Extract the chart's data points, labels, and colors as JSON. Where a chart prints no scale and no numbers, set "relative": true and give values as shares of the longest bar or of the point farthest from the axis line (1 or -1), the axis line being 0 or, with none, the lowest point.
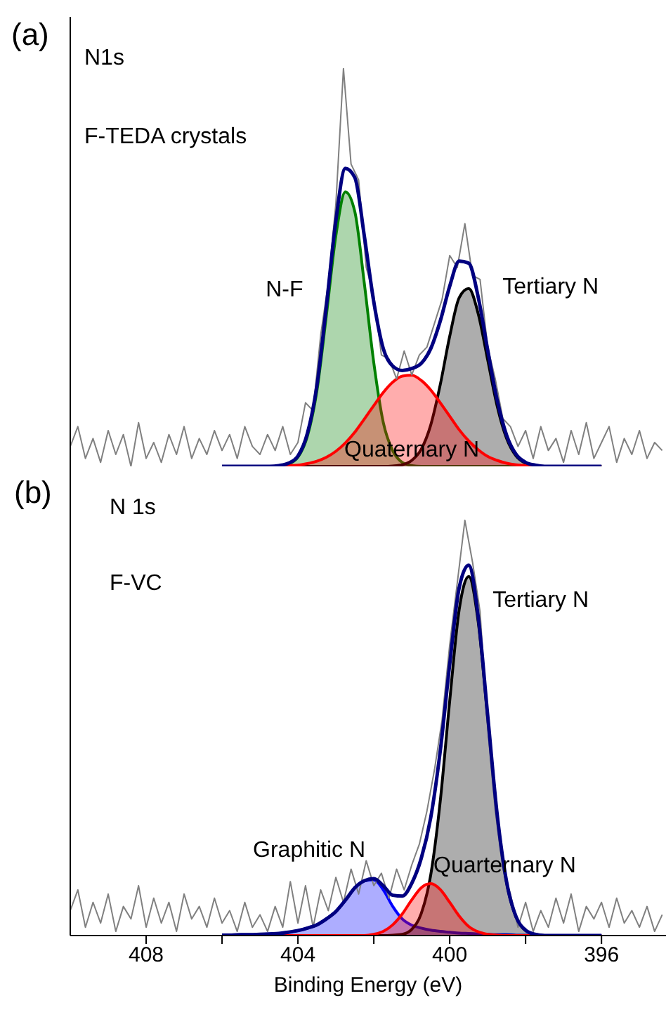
{
  "chart_data": [
    {
      "type": "line",
      "title": "(a)",
      "annotations": [
        "N1s",
        "F-TEDA crystals"
      ],
      "relative": true,
      "xlim": [
        410,
        394.3
      ],
      "tick_labels": false,
      "x": [
        406,
        405.75,
        405.5,
        405.25,
        405,
        404.75,
        404.5,
        404.25,
        404,
        403.75,
        403.5,
        403.25,
        403,
        402.75,
        402.5,
        402.25,
        402,
        401.75,
        401.5,
        401.25,
        401,
        400.75,
        400.5,
        400.25,
        400,
        399.75,
        399.5,
        399.25,
        399,
        398.75,
        398.5,
        398.25,
        398,
        397.75,
        397.5,
        397.25,
        397,
        396.75,
        396.5,
        396.25,
        396
      ],
      "series": [
        {
          "type": "area",
          "name": "N-F",
          "color": "#008000",
          "values": [
            0,
            0,
            0,
            0,
            0,
            0,
            0.001,
            0.006,
            0.023,
            0.076,
            0.19,
            0.38,
            0.58,
            0.69,
            0.64,
            0.46,
            0.26,
            0.11,
            0.039,
            0.01,
            0.002,
            0,
            0,
            0,
            0,
            0,
            0,
            0,
            0,
            0,
            0,
            0,
            0,
            0,
            0,
            0,
            0,
            0,
            0,
            0,
            0
          ]
        },
        {
          "type": "area",
          "name": "Tertiary N",
          "color": "#000000",
          "values": [
            0,
            0,
            0,
            0,
            0,
            0,
            0,
            0,
            0,
            0,
            0,
            0,
            0,
            0,
            0,
            0,
            0,
            0,
            0.001,
            0.004,
            0.015,
            0.043,
            0.104,
            0.205,
            0.327,
            0.424,
            0.447,
            0.384,
            0.268,
            0.152,
            0.07,
            0.026,
            0.008,
            0.002,
            0,
            0,
            0,
            0,
            0,
            0,
            0
          ]
        },
        {
          "type": "area",
          "name": "Quaternary N",
          "color": "#ff0000",
          "values": [
            0,
            0,
            0,
            0,
            0,
            0,
            0.001,
            0.002,
            0.003,
            0.007,
            0.013,
            0.023,
            0.038,
            0.059,
            0.086,
            0.119,
            0.153,
            0.186,
            0.212,
            0.227,
            0.229,
            0.216,
            0.192,
            0.16,
            0.126,
            0.092,
            0.064,
            0.042,
            0.025,
            0.015,
            0.008,
            0.004,
            0.002,
            0.001,
            0,
            0,
            0,
            0,
            0,
            0,
            0
          ]
        },
        {
          "color": "#808080",
          "x": [
            410,
            409.8,
            409.6,
            409.4,
            409.2,
            409,
            408.8,
            408.6,
            408.4,
            408.2,
            408,
            407.8,
            407.6,
            407.4,
            407.2,
            407,
            406.8,
            406.6,
            406.4,
            406.2,
            406,
            405.8,
            405.6,
            405.4,
            405.2,
            405,
            404.8,
            404.6,
            404.4,
            404.2,
            404,
            403.8,
            403.6,
            403.4,
            403.2,
            403,
            402.8,
            402.6,
            402.4,
            402.2,
            402,
            401.8,
            401.6,
            401.4,
            401.2,
            401,
            400.8,
            400.6,
            400.4,
            400.2,
            400,
            399.8,
            399.6,
            399.4,
            399.2,
            399,
            398.8,
            398.6,
            398.4,
            398.2,
            398,
            397.8,
            397.6,
            397.4,
            397.2,
            397,
            396.8,
            396.6,
            396.4,
            396.2,
            396,
            395.8,
            395.6,
            395.4,
            395.2,
            395,
            394.8,
            394.6,
            394.4
          ],
          "values": [
            0.05,
            0.1,
            0.02,
            0.07,
            0.01,
            0.09,
            0.03,
            0.08,
            0,
            0.11,
            0.02,
            0.06,
            0.01,
            0.08,
            0.03,
            0.1,
            0.02,
            0.07,
            0.03,
            0.09,
            0.04,
            0.08,
            0.02,
            0.1,
            0.05,
            0.03,
            0.08,
            0.04,
            0.1,
            0.03,
            0.06,
            0.16,
            0.14,
            0.33,
            0.46,
            0.66,
            1,
            0.76,
            0.72,
            0.5,
            0.43,
            0.28,
            0.27,
            0.22,
            0.29,
            0.23,
            0.28,
            0.3,
            0.36,
            0.42,
            0.53,
            0.5,
            0.61,
            0.48,
            0.47,
            0.3,
            0.22,
            0.12,
            0.1,
            0.05,
            0.09,
            0.02,
            0.1,
            0.04,
            0.07,
            0.01,
            0.09,
            0.03,
            0.11,
            0.02,
            0.06,
            0.1,
            0.01,
            0.07,
            0.03,
            0.09,
            0.02,
            0.06,
            0.04
          ]
        },
        {
          "color": "#000080",
          "values": [
            0,
            0,
            0,
            0,
            0,
            0,
            0.002,
            0.008,
            0.026,
            0.083,
            0.203,
            0.403,
            0.618,
            0.749,
            0.726,
            0.579,
            0.413,
            0.296,
            0.252,
            0.241,
            0.246,
            0.259,
            0.296,
            0.365,
            0.453,
            0.516,
            0.511,
            0.426,
            0.293,
            0.167,
            0.078,
            0.03,
            0.01,
            0.003,
            0,
            0,
            0,
            0,
            0,
            0,
            0
          ]
        }
      ]
    },
    {
      "type": "line",
      "title": "(b)",
      "annotations": [
        "N 1s",
        "F-VC"
      ],
      "xlabel": "Binding Energy (eV)",
      "relative": true,
      "xlim": [
        410,
        394.3
      ],
      "xticks": [
        408,
        {
          "value": 406,
          "label": null
        },
        404,
        {
          "value": 402,
          "label": null
        },
        400,
        {
          "value": 398,
          "label": null
        },
        396
      ],
      "tick_labels": "x",
      "x": [
        406,
        405.75,
        405.5,
        405.25,
        405,
        404.75,
        404.5,
        404.25,
        404,
        403.75,
        403.5,
        403.25,
        403,
        402.75,
        402.5,
        402.25,
        402,
        401.75,
        401.5,
        401.25,
        401,
        400.75,
        400.5,
        400.25,
        400,
        399.75,
        399.5,
        399.25,
        399,
        398.75,
        398.5,
        398.25,
        398,
        397.75,
        397.5,
        397.25,
        397,
        396.75,
        396.5,
        396.25,
        396
      ],
      "series": [
        {
          "type": "area",
          "name": "Graphitic N",
          "color": "#0000ff",
          "values": [
            0.001,
            0.001,
            0.002,
            0.002,
            0.003,
            0.004,
            0.005,
            0.008,
            0.012,
            0.018,
            0.026,
            0.04,
            0.058,
            0.085,
            0.115,
            0.132,
            0.134,
            0.11,
            0.07,
            0.04,
            0.025,
            0.018,
            0.013,
            0.01,
            0.008,
            0.006,
            0.005,
            0.004,
            0.003,
            0.002,
            0.002,
            0.001,
            0.001,
            0,
            0,
            0,
            0,
            0,
            0,
            0,
            0
          ]
        },
        {
          "type": "area",
          "name": "Tertiary N",
          "color": "#000000",
          "values": [
            0,
            0,
            0,
            0,
            0,
            0,
            0,
            0,
            0,
            0,
            0,
            0,
            0,
            0,
            0,
            0,
            0,
            0,
            0.001,
            0.003,
            0.015,
            0.053,
            0.146,
            0.323,
            0.565,
            0.785,
            0.865,
            0.756,
            0.525,
            0.289,
            0.127,
            0.044,
            0.012,
            0.003,
            0,
            0,
            0,
            0,
            0,
            0,
            0
          ]
        },
        {
          "type": "area",
          "name": "Quarternary N",
          "color": "#ff0000",
          "values": [
            0,
            0,
            0,
            0,
            0,
            0,
            0,
            0,
            0,
            0,
            0,
            0,
            0,
            0,
            0,
            0,
            0.003,
            0.01,
            0.026,
            0.052,
            0.086,
            0.115,
            0.125,
            0.111,
            0.08,
            0.047,
            0.022,
            0.009,
            0.003,
            0.001,
            0,
            0,
            0,
            0,
            0,
            0,
            0,
            0,
            0,
            0,
            0
          ]
        },
        {
          "color": "#808080",
          "x": [
            410,
            409.8,
            409.6,
            409.4,
            409.2,
            409,
            408.8,
            408.6,
            408.4,
            408.2,
            408,
            407.8,
            407.6,
            407.4,
            407.2,
            407,
            406.8,
            406.6,
            406.4,
            406.2,
            406,
            405.8,
            405.6,
            405.4,
            405.2,
            405,
            404.8,
            404.6,
            404.4,
            404.2,
            404,
            403.8,
            403.6,
            403.4,
            403.2,
            403,
            402.8,
            402.6,
            402.4,
            402.2,
            402,
            401.8,
            401.6,
            401.4,
            401.2,
            401,
            400.8,
            400.6,
            400.4,
            400.2,
            400,
            399.8,
            399.6,
            399.4,
            399.2,
            399,
            398.8,
            398.6,
            398.4,
            398.2,
            398,
            397.8,
            397.6,
            397.4,
            397.2,
            397,
            396.8,
            396.6,
            396.4,
            396.2,
            396,
            395.8,
            395.6,
            395.4,
            395.2,
            395,
            394.8,
            394.6,
            394.4
          ],
          "values": [
            0.06,
            0.11,
            0.02,
            0.08,
            0.03,
            0.1,
            0.01,
            0.07,
            0.04,
            0.12,
            0.02,
            0.09,
            0.03,
            0.08,
            0.01,
            0.1,
            0.04,
            0.07,
            0.02,
            0.09,
            0.03,
            0.06,
            0.01,
            0.08,
            0.02,
            0.05,
            0.01,
            0.07,
            0.02,
            0.13,
            0.03,
            0.12,
            0.02,
            0.11,
            0.06,
            0.14,
            0.08,
            0.16,
            0.1,
            0.18,
            0.12,
            0.15,
            0.09,
            0.16,
            0.11,
            0.17,
            0.22,
            0.3,
            0.4,
            0.52,
            0.7,
            0.85,
            1,
            0.9,
            0.78,
            0.5,
            0.3,
            0.16,
            0.1,
            0.02,
            0.08,
            0.01,
            0.06,
            0.02,
            0.09,
            0.03,
            0.1,
            0.01,
            0.07,
            0.04,
            0.08,
            0.02,
            0.09,
            0.03,
            0.06,
            0.02,
            0.07,
            0.01,
            0.05
          ]
        },
        {
          "color": "#000080",
          "values": [
            0.001,
            0.001,
            0.002,
            0.002,
            0.003,
            0.004,
            0.005,
            0.008,
            0.012,
            0.018,
            0.026,
            0.04,
            0.058,
            0.085,
            0.115,
            0.132,
            0.137,
            0.12,
            0.097,
            0.095,
            0.126,
            0.186,
            0.284,
            0.444,
            0.653,
            0.838,
            0.892,
            0.769,
            0.531,
            0.292,
            0.129,
            0.045,
            0.013,
            0.003,
            0,
            0,
            0,
            0,
            0,
            0,
            0
          ]
        }
      ]
    }
  ]
}
